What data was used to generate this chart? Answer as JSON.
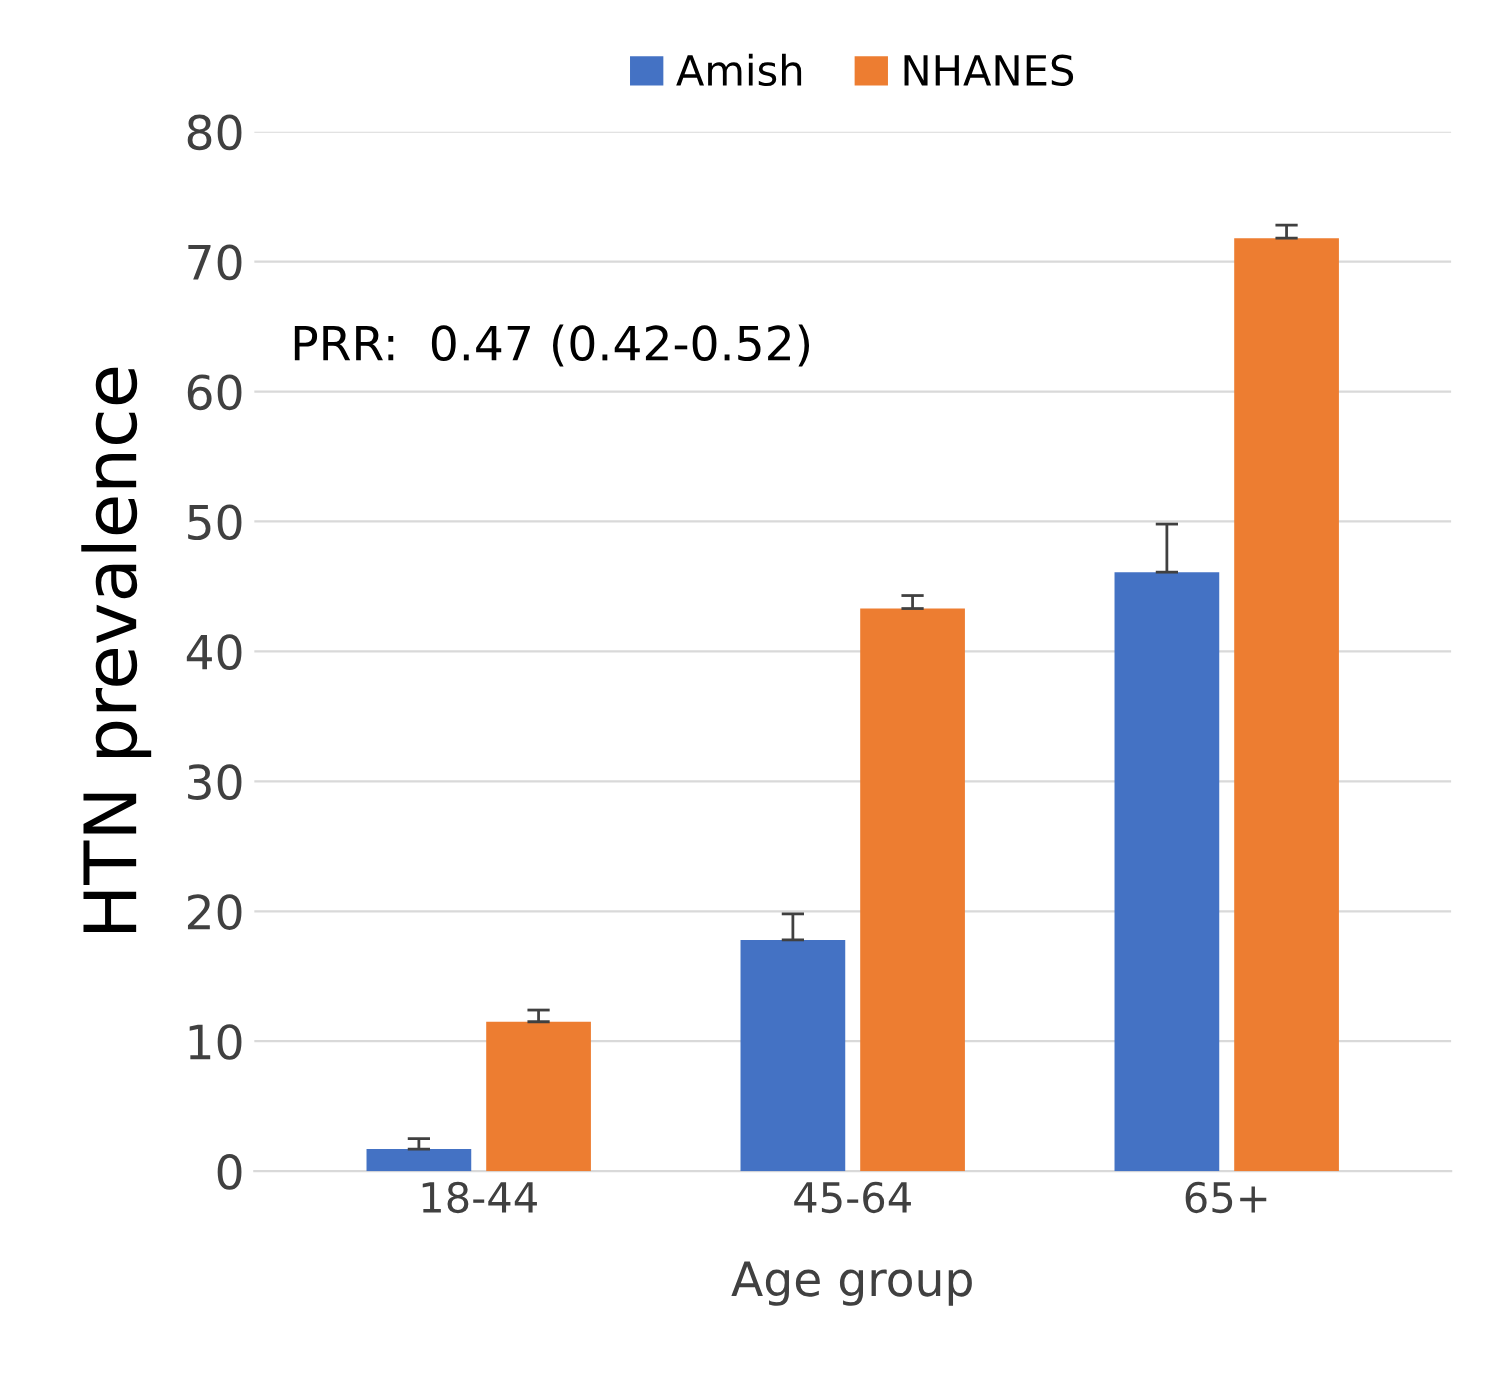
{
  "chart_data": {
    "type": "bar",
    "xlabel": "Age group",
    "ylabel": "HTN prevalence",
    "categories": [
      "18-44",
      "45-64",
      "65+"
    ],
    "series": [
      {
        "name": "Amish",
        "color": "#4472c4",
        "values": [
          1.7,
          17.8,
          46.1
        ],
        "errors": [
          [
            1.7,
            2.5
          ],
          [
            17.8,
            19.8
          ],
          [
            46.1,
            49.8
          ]
        ]
      },
      {
        "name": "NHANES",
        "color": "#ed7d31",
        "values": [
          11.5,
          43.3,
          71.8
        ],
        "errors": [
          [
            11.5,
            12.4
          ],
          [
            43.3,
            44.3
          ],
          [
            71.8,
            72.8
          ]
        ]
      }
    ],
    "ylim": [
      0,
      80
    ],
    "yticks": [
      0,
      10,
      20,
      30,
      40,
      50,
      60,
      70,
      80
    ],
    "grid": "y",
    "legend": "top",
    "annotations": [
      "PRR:  0.47 (0.42-0.52)"
    ]
  }
}
